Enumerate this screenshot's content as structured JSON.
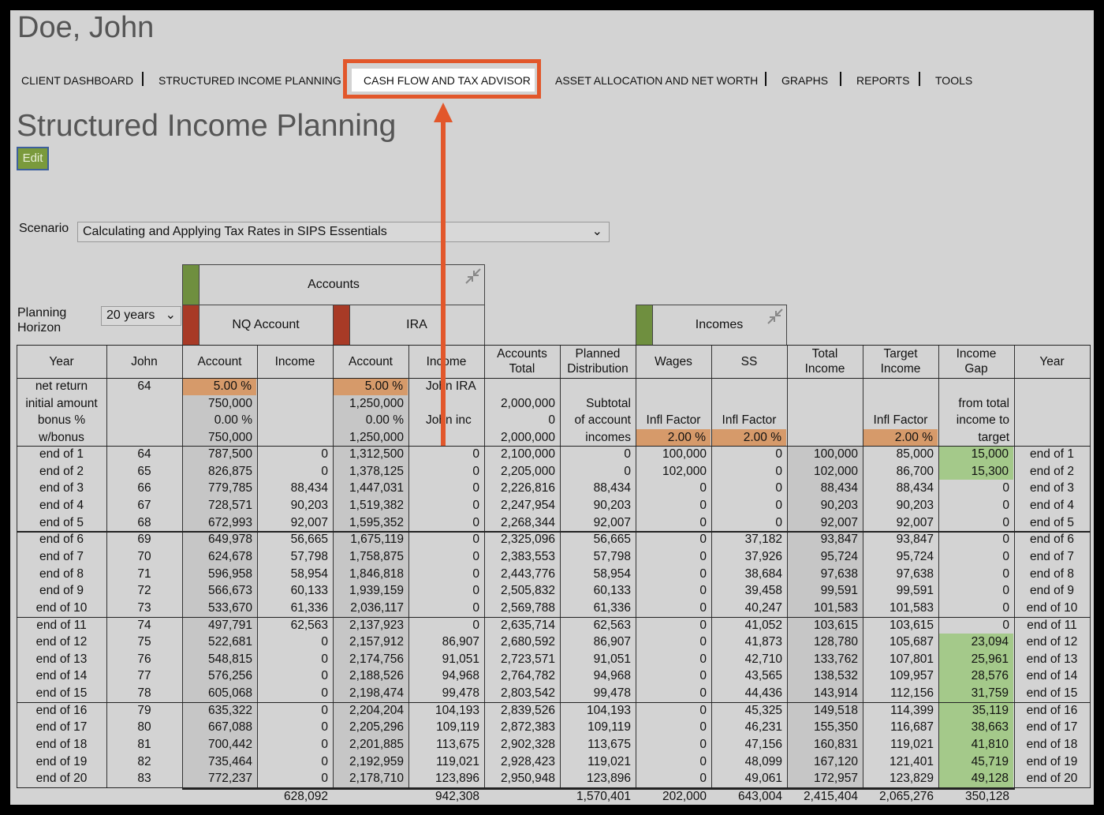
{
  "header": {
    "name": "Doe, John"
  },
  "nav": [
    "CLIENT DASHBOARD",
    "STRUCTURED INCOME PLANNING",
    "CASH FLOW AND TAX ADVISOR",
    "ASSET ALLOCATION AND NET WORTH",
    "GRAPHS",
    "REPORTS",
    "TOOLS"
  ],
  "page_title": "Structured Income Planning",
  "edit_button": "Edit",
  "scenario": {
    "label": "Scenario",
    "value": "Calculating and Applying Tax Rates in SIPS Essentials"
  },
  "horizon": {
    "label": "Planning Horizon",
    "value": "20 years"
  },
  "groups": {
    "accounts": "Accounts",
    "nq": "NQ Account",
    "ira": "IRA",
    "incomes": "Incomes"
  },
  "table": {
    "columns": [
      "Year",
      "John",
      "Account",
      "Income",
      "Account",
      "Income",
      "Accounts Total",
      "Planned Distribution",
      "Wages",
      "SS",
      "Total Income",
      "Target Income",
      "Income Gap",
      "Year"
    ],
    "setup_rows": [
      [
        "net return",
        "64",
        "5.00 %",
        null,
        "5.00 %",
        "John IRA",
        null,
        null,
        null,
        null,
        null,
        null,
        null,
        null
      ],
      [
        "initial amount",
        null,
        "750,000",
        null,
        "1,250,000",
        null,
        "2,000,000",
        "Subtotal",
        null,
        null,
        null,
        null,
        "from total",
        null
      ],
      [
        "bonus %",
        null,
        "0.00 %",
        null,
        "0.00 %",
        "John inc",
        "0",
        "of account",
        "Infl Factor",
        "Infl Factor",
        null,
        "Infl Factor",
        "income to",
        null
      ],
      [
        "w/bonus",
        null,
        "750,000",
        null,
        "1,250,000",
        null,
        "2,000,000",
        "incomes",
        "2.00 %",
        "2.00 %",
        null,
        "2.00 %",
        "target",
        null
      ]
    ],
    "rows": [
      [
        "end of 1",
        "64",
        "787,500",
        "0",
        "1,312,500",
        "0",
        "2,100,000",
        "0",
        "100,000",
        "0",
        "100,000",
        "85,000",
        "15,000",
        "end of 1"
      ],
      [
        "end of 2",
        "65",
        "826,875",
        "0",
        "1,378,125",
        "0",
        "2,205,000",
        "0",
        "102,000",
        "0",
        "102,000",
        "86,700",
        "15,300",
        "end of 2"
      ],
      [
        "end of 3",
        "66",
        "779,785",
        "88,434",
        "1,447,031",
        "0",
        "2,226,816",
        "88,434",
        "0",
        "0",
        "88,434",
        "88,434",
        "0",
        "end of 3"
      ],
      [
        "end of 4",
        "67",
        "728,571",
        "90,203",
        "1,519,382",
        "0",
        "2,247,954",
        "90,203",
        "0",
        "0",
        "90,203",
        "90,203",
        "0",
        "end of 4"
      ],
      [
        "end of 5",
        "68",
        "672,993",
        "92,007",
        "1,595,352",
        "0",
        "2,268,344",
        "92,007",
        "0",
        "0",
        "92,007",
        "92,007",
        "0",
        "end of 5"
      ],
      [
        "end of 6",
        "69",
        "649,978",
        "56,665",
        "1,675,119",
        "0",
        "2,325,096",
        "56,665",
        "0",
        "37,182",
        "93,847",
        "93,847",
        "0",
        "end of 6"
      ],
      [
        "end of 7",
        "70",
        "624,678",
        "57,798",
        "1,758,875",
        "0",
        "2,383,553",
        "57,798",
        "0",
        "37,926",
        "95,724",
        "95,724",
        "0",
        "end of 7"
      ],
      [
        "end of 8",
        "71",
        "596,958",
        "58,954",
        "1,846,818",
        "0",
        "2,443,776",
        "58,954",
        "0",
        "38,684",
        "97,638",
        "97,638",
        "0",
        "end of 8"
      ],
      [
        "end of 9",
        "72",
        "566,673",
        "60,133",
        "1,939,159",
        "0",
        "2,505,832",
        "60,133",
        "0",
        "39,458",
        "99,591",
        "99,591",
        "0",
        "end of 9"
      ],
      [
        "end of 10",
        "73",
        "533,670",
        "61,336",
        "2,036,117",
        "0",
        "2,569,788",
        "61,336",
        "0",
        "40,247",
        "101,583",
        "101,583",
        "0",
        "end of 10"
      ],
      [
        "end of 11",
        "74",
        "497,791",
        "62,563",
        "2,137,923",
        "0",
        "2,635,714",
        "62,563",
        "0",
        "41,052",
        "103,615",
        "103,615",
        "0",
        "end of 11"
      ],
      [
        "end of 12",
        "75",
        "522,681",
        "0",
        "2,157,912",
        "86,907",
        "2,680,592",
        "86,907",
        "0",
        "41,873",
        "128,780",
        "105,687",
        "23,094",
        "end of 12"
      ],
      [
        "end of 13",
        "76",
        "548,815",
        "0",
        "2,174,756",
        "91,051",
        "2,723,571",
        "91,051",
        "0",
        "42,710",
        "133,762",
        "107,801",
        "25,961",
        "end of 13"
      ],
      [
        "end of 14",
        "77",
        "576,256",
        "0",
        "2,188,526",
        "94,968",
        "2,764,782",
        "94,968",
        "0",
        "43,565",
        "138,532",
        "109,957",
        "28,576",
        "end of 14"
      ],
      [
        "end of 15",
        "78",
        "605,068",
        "0",
        "2,198,474",
        "99,478",
        "2,803,542",
        "99,478",
        "0",
        "44,436",
        "143,914",
        "112,156",
        "31,759",
        "end of 15"
      ],
      [
        "end of 16",
        "79",
        "635,322",
        "0",
        "2,204,204",
        "104,193",
        "2,839,526",
        "104,193",
        "0",
        "45,325",
        "149,518",
        "114,399",
        "35,119",
        "end of 16"
      ],
      [
        "end of 17",
        "80",
        "667,088",
        "0",
        "2,205,296",
        "109,119",
        "2,872,383",
        "109,119",
        "0",
        "46,231",
        "155,350",
        "116,687",
        "38,663",
        "end of 17"
      ],
      [
        "end of 18",
        "81",
        "700,442",
        "0",
        "2,201,885",
        "113,675",
        "2,902,328",
        "113,675",
        "0",
        "47,156",
        "160,831",
        "119,021",
        "41,810",
        "end of 18"
      ],
      [
        "end of 19",
        "82",
        "735,464",
        "0",
        "2,192,959",
        "119,021",
        "2,928,423",
        "119,021",
        "0",
        "48,099",
        "167,120",
        "121,401",
        "45,719",
        "end of 19"
      ],
      [
        "end of 20",
        "83",
        "772,237",
        "0",
        "2,178,710",
        "123,896",
        "2,950,948",
        "123,896",
        "0",
        "49,061",
        "172,957",
        "123,829",
        "49,128",
        "end of 20"
      ]
    ],
    "totals": [
      null,
      null,
      null,
      "628,092",
      null,
      "942,308",
      null,
      "1,570,401",
      "202,000",
      "643,004",
      "2,415,404",
      "2,065,276",
      "350,128",
      null
    ]
  }
}
